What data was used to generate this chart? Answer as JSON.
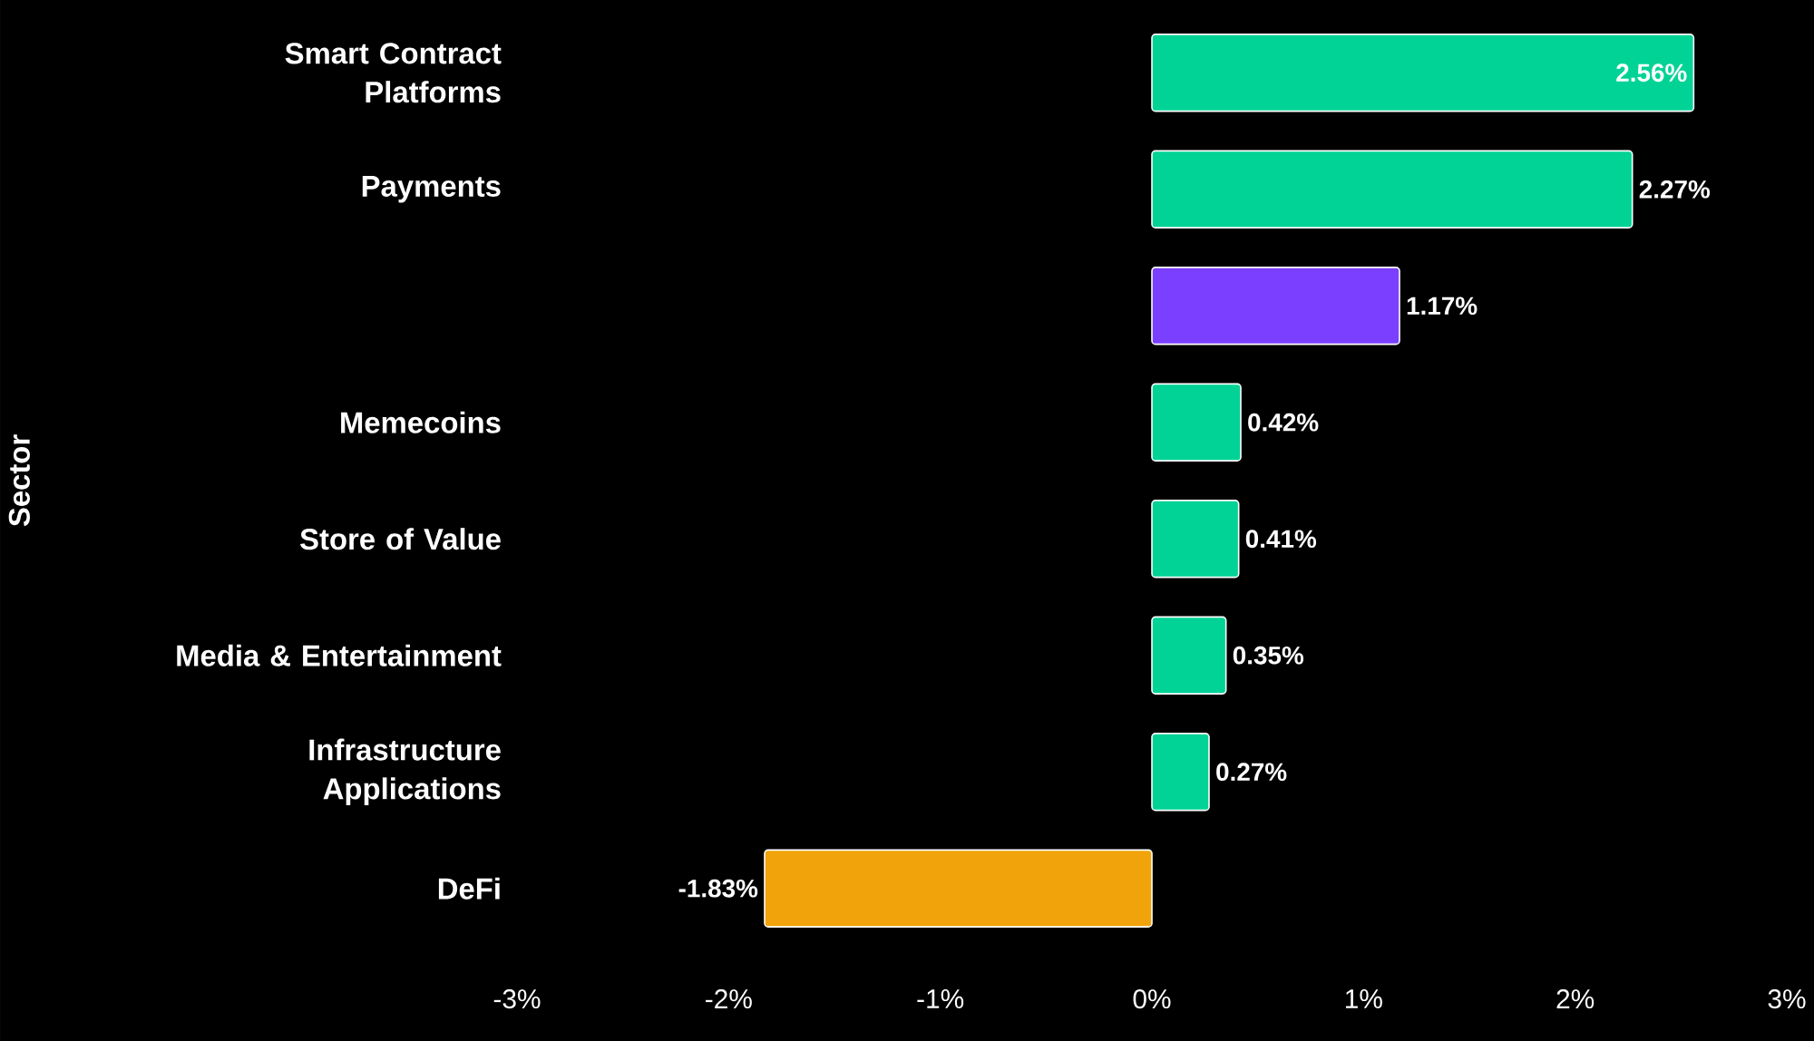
{
  "chart_data": {
    "type": "bar",
    "orientation": "horizontal",
    "ylabel": "Sector",
    "categories": [
      "Smart Contract Platforms",
      "Payments",
      null,
      "Memecoins",
      "Store of Value",
      "Media & Entertainment",
      "Infrastructure Applications",
      "DeFi"
    ],
    "values": [
      2.56,
      2.27,
      1.17,
      0.42,
      0.41,
      0.35,
      0.27,
      -1.83
    ],
    "value_labels": [
      "2.56%",
      "2.27%",
      "1.17%",
      "0.42%",
      "0.41%",
      "0.35%",
      "0.27%",
      "-1.83%"
    ],
    "colors": [
      "#00d395",
      "#00d395",
      "#7b3fff",
      "#00d395",
      "#00d395",
      "#00d395",
      "#00d395",
      "#f0a30a"
    ],
    "xlim": [
      -3,
      3
    ],
    "xticks": [
      {
        "value": -3,
        "label": "-3%"
      },
      {
        "value": -2,
        "label": "-2%"
      },
      {
        "value": -1,
        "label": "-1%"
      },
      {
        "value": 0,
        "label": "0%"
      },
      {
        "value": 1,
        "label": "1%"
      },
      {
        "value": 2,
        "label": "2%"
      },
      {
        "value": 3,
        "label": "3%"
      }
    ]
  }
}
